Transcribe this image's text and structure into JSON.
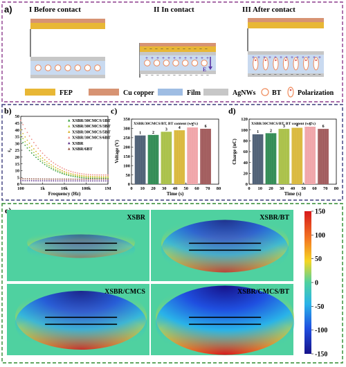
{
  "panel_a": {
    "label": "a)",
    "stages": [
      "I Before contact",
      "II In contact",
      "III After contact"
    ],
    "field_label": "E",
    "legend": [
      {
        "label": "FEP",
        "color": "#e8b735"
      },
      {
        "label": "Cu copper",
        "color": "#d79373"
      },
      {
        "label": "Film",
        "color": "#9fbde3"
      },
      {
        "label": "AgNWs",
        "color": "#c7c7c7"
      },
      {
        "label": "BT",
        "color": "#ef8a5a"
      },
      {
        "label": "Polarization",
        "color": "#ef8a5a"
      }
    ]
  },
  "chart_data": [
    {
      "id": "b",
      "type": "scatter",
      "label": "b)",
      "xlabel": "Frequency (Hz)",
      "ylabel": "ε",
      "ylabel_sub": "r",
      "x_scale": "log",
      "xlim": [
        100,
        1000000
      ],
      "ylim": [
        0,
        50
      ],
      "xticks": [
        "100",
        "1k",
        "10k",
        "100k",
        "1M"
      ],
      "yticks": [
        "0",
        "5",
        "10",
        "15",
        "20",
        "25",
        "30",
        "35",
        "40",
        "45",
        "50"
      ],
      "series": [
        {
          "name": "XSBR/30CMCS/1BT",
          "color": "#2e9a3a",
          "marker": "triangle",
          "start": 33,
          "end": 4.2
        },
        {
          "name": "XSBR/30CMCS/3BT",
          "color": "#a8c838",
          "marker": "triangle",
          "start": 36,
          "end": 4.8
        },
        {
          "name": "XSBR/30CMCS/5BT",
          "color": "#d8b028",
          "marker": "triangle",
          "start": 40,
          "end": 5.6
        },
        {
          "name": "XSBR/30CMCS/6BT",
          "color": "#ee8a84",
          "marker": "triangle",
          "start": 47,
          "end": 6.8
        },
        {
          "name": "XSBR",
          "color": "#5a2e86",
          "marker": "triangle",
          "start": 2.6,
          "end": 2.4
        },
        {
          "name": "XSBR/6BT",
          "color": "#8a4b3a",
          "marker": "triangle",
          "start": 4.0,
          "end": 3.7
        }
      ]
    },
    {
      "id": "c",
      "type": "bar",
      "label": "c)",
      "title": "XSBR/30CMCS/BT, BT content (wt%)",
      "xlabel": "Time (s)",
      "ylabel": "Voltage (V)",
      "xlim": [
        0,
        80
      ],
      "ylim": [
        0,
        350
      ],
      "xticks": [
        "0",
        "10",
        "20",
        "30",
        "40",
        "50",
        "60",
        "70",
        "80"
      ],
      "yticks": [
        "0",
        "50",
        "100",
        "150",
        "200",
        "250",
        "300",
        "350"
      ],
      "bars": [
        {
          "label": "1",
          "x0": 3,
          "x1": 13,
          "value": 262,
          "color": "#4c5e74"
        },
        {
          "label": "2",
          "x0": 15,
          "x1": 25,
          "value": 265,
          "color": "#2f8a52"
        },
        {
          "label": "3",
          "x0": 27,
          "x1": 37,
          "value": 282,
          "color": "#a9c046"
        },
        {
          "label": "4",
          "x0": 39,
          "x1": 49,
          "value": 290,
          "color": "#d9b83a"
        },
        {
          "label": "5",
          "x0": 51,
          "x1": 61,
          "value": 305,
          "color": "#f0a4a8"
        },
        {
          "label": "6",
          "x0": 63,
          "x1": 73,
          "value": 298,
          "color": "#a0595a"
        }
      ]
    },
    {
      "id": "d",
      "type": "bar",
      "label": "d)",
      "title": "XSBR/30CMCS/BT, BT content (wt%)",
      "xlabel": "Time (s)",
      "ylabel": "Charge (nC)",
      "xlim": [
        0,
        80
      ],
      "ylim": [
        0,
        120
      ],
      "xticks": [
        "0",
        "10",
        "20",
        "30",
        "40",
        "50",
        "60",
        "70",
        "80"
      ],
      "yticks": [
        "0",
        "20",
        "40",
        "60",
        "80",
        "100",
        "120"
      ],
      "bars": [
        {
          "label": "1",
          "x0": 3,
          "x1": 13,
          "value": 92,
          "color": "#4c5e74"
        },
        {
          "label": "2",
          "x0": 15,
          "x1": 25,
          "value": 94,
          "color": "#2f8a52"
        },
        {
          "label": "3",
          "x0": 27,
          "x1": 37,
          "value": 102,
          "color": "#a9c046"
        },
        {
          "label": "4",
          "x0": 39,
          "x1": 49,
          "value": 104,
          "color": "#d9b83a"
        },
        {
          "label": "5",
          "x0": 51,
          "x1": 61,
          "value": 106,
          "color": "#f0a4a8"
        },
        {
          "label": "6",
          "x0": 63,
          "x1": 73,
          "value": 102,
          "color": "#a0595a"
        }
      ]
    },
    {
      "id": "e",
      "type": "heatmap",
      "label": "e)",
      "colorbar_ticks": [
        "150",
        "100",
        "50",
        "0",
        "-50",
        "-100",
        "-150"
      ],
      "clim": [
        -150,
        150
      ],
      "maps": [
        {
          "name": "XSBR",
          "peak": 40
        },
        {
          "name": "XSBR/BT",
          "peak": 110
        },
        {
          "name": "XSBR/CMCS",
          "peak": 125
        },
        {
          "name": "XSBR/CMCS/BT",
          "peak": 150
        }
      ]
    }
  ]
}
